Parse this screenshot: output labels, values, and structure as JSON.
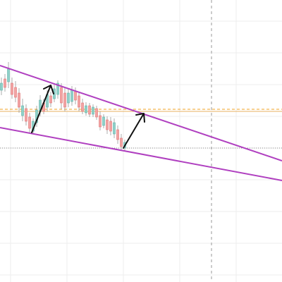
{
  "chart_data": {
    "type": "candlestick",
    "grid": true
  }
}
